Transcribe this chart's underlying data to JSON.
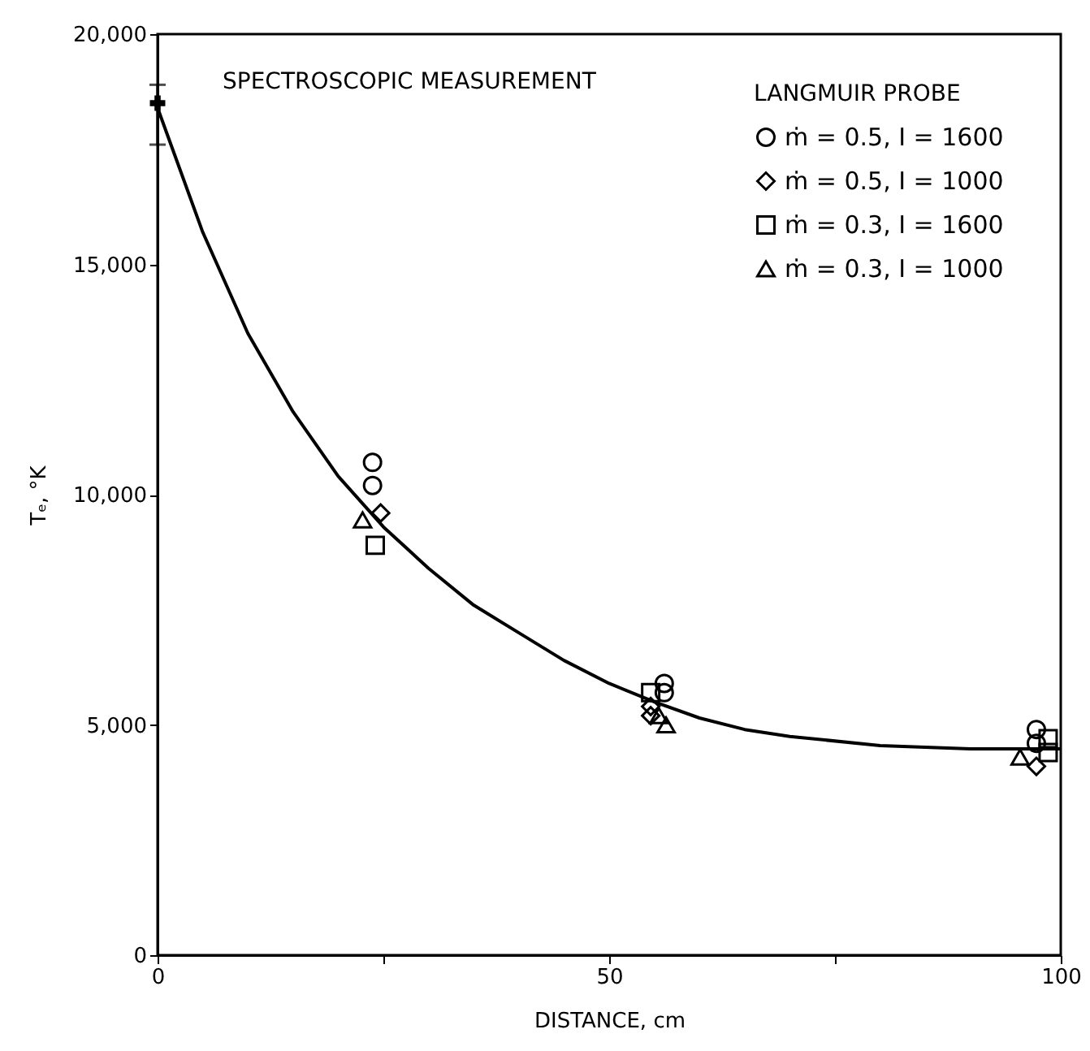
{
  "chart_data": {
    "type": "scatter",
    "xlabel": "DISTANCE, cm",
    "ylabel": "Tₑ, °K",
    "legend_title": "LANGMUIR PROBE",
    "legend": "top right",
    "grid": false,
    "xlim": [
      0,
      100
    ],
    "ylim": [
      0,
      20000
    ],
    "xticks": [
      0,
      {
        "value": 25,
        "label": null
      },
      50,
      {
        "value": 75,
        "label": null
      },
      100
    ],
    "yticks": [
      {
        "value": 0,
        "label": "0"
      },
      {
        "value": 5000,
        "label": "5,000"
      },
      {
        "value": 10000,
        "label": "10,000"
      },
      {
        "value": 15000,
        "label": "15,000"
      },
      {
        "value": 20000,
        "label": "20,000"
      }
    ],
    "annotations": [
      {
        "text": "SPECTROSCOPIC MEASUREMENT",
        "x": 0,
        "y": 18500
      }
    ],
    "series": [
      {
        "type": "line",
        "color": "#000000",
        "marker": "none",
        "x": [
          0,
          5,
          10,
          15,
          20,
          25,
          30,
          35,
          40,
          45,
          50,
          55,
          60,
          65,
          70,
          80,
          90,
          100
        ],
        "values": [
          18400,
          15700,
          13500,
          11800,
          10400,
          9300,
          8400,
          7600,
          7000,
          6400,
          5900,
          5500,
          5150,
          4900,
          4750,
          4550,
          4480,
          4480
        ]
      },
      {
        "color": "#000000",
        "marker": "cross",
        "x": [
          0
        ],
        "values": [
          18500
        ],
        "errors": [
          [
            17600,
            18900
          ]
        ]
      },
      {
        "name": "ṁ = 0.5,  I = 1600",
        "color": "#000000",
        "marker": "circle",
        "x": [
          23.8,
          23.8,
          56.1,
          56.1,
          97.3,
          97.3
        ],
        "values": [
          10700,
          10200,
          5900,
          5700,
          4900,
          4600
        ]
      },
      {
        "name": "ṁ = 0.5,  I = 1000",
        "color": "#000000",
        "marker": "diamond",
        "x": [
          24.7,
          54.6,
          54.6,
          97.3
        ],
        "values": [
          9600,
          5400,
          5200,
          4100
        ]
      },
      {
        "name": "ṁ = 0.3,  I = 1600",
        "color": "#000000",
        "marker": "square",
        "x": [
          24.1,
          54.6,
          98.6,
          98.6
        ],
        "values": [
          8900,
          5700,
          4700,
          4400
        ]
      },
      {
        "name": "ṁ = 0.3,  I = 1000",
        "color": "#000000",
        "marker": "triangle",
        "x": [
          22.7,
          55.5,
          56.3,
          95.5
        ],
        "values": [
          9450,
          5200,
          5000,
          4300
        ]
      }
    ]
  }
}
